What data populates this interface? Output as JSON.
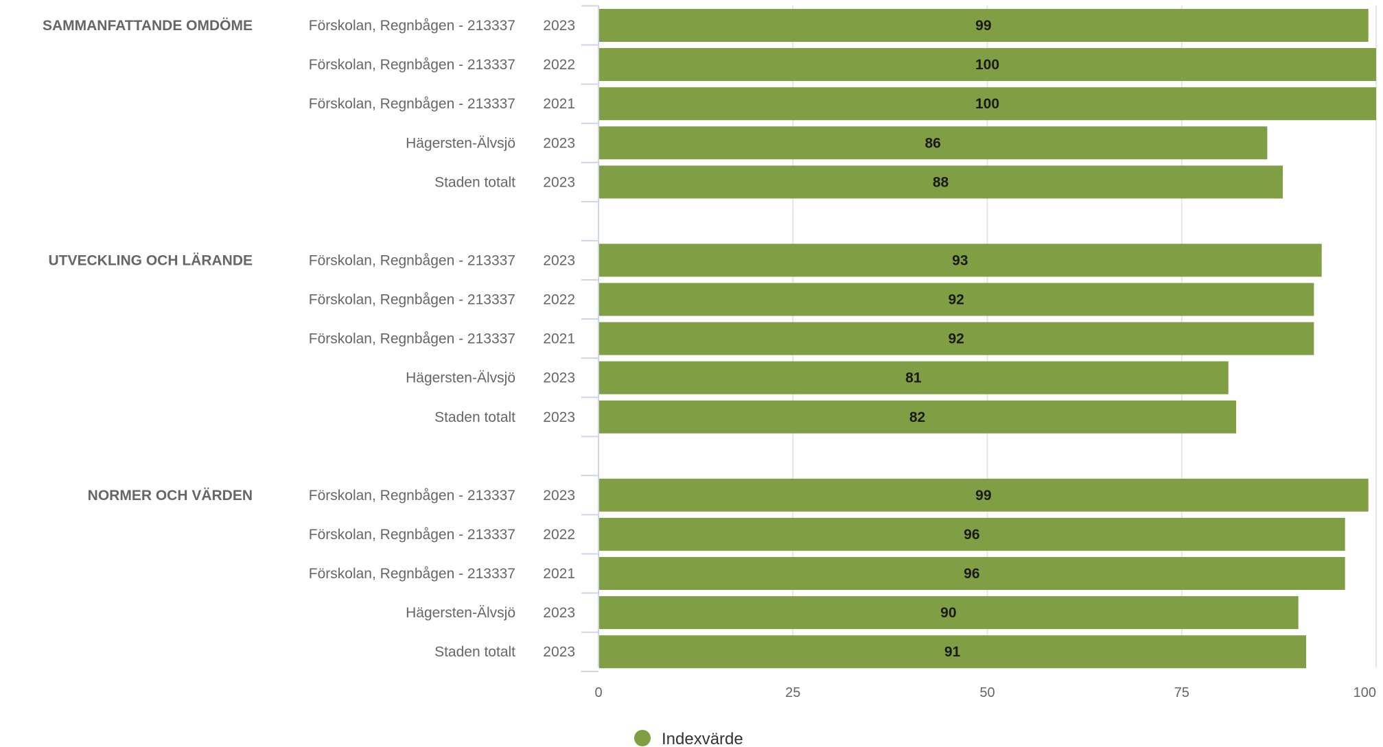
{
  "chart_data": {
    "type": "bar",
    "orientation": "horizontal",
    "grouped_categories": true,
    "xlim": [
      0,
      100
    ],
    "ticks": [
      "0",
      "25",
      "50",
      "75",
      "100"
    ],
    "grid": true,
    "legend_position": "bottom-center",
    "series": [
      {
        "name": "Indexvärde",
        "color": "#809e44"
      }
    ],
    "groups": [
      {
        "label": "SAMMANFATTANDE OMDÖME",
        "rows": [
          {
            "category": "Förskolan, Regnbågen - 213337",
            "year": "2023",
            "value": 99
          },
          {
            "category": "Förskolan, Regnbågen - 213337",
            "year": "2022",
            "value": 100
          },
          {
            "category": "Förskolan, Regnbågen - 213337",
            "year": "2021",
            "value": 100
          },
          {
            "category": "Hägersten-Älvsjö",
            "year": "2023",
            "value": 86
          },
          {
            "category": "Staden totalt",
            "year": "2023",
            "value": 88
          }
        ]
      },
      {
        "label": "UTVECKLING OCH LÄRANDE",
        "rows": [
          {
            "category": "Förskolan, Regnbågen - 213337",
            "year": "2023",
            "value": 93
          },
          {
            "category": "Förskolan, Regnbågen - 213337",
            "year": "2022",
            "value": 92
          },
          {
            "category": "Förskolan, Regnbågen - 213337",
            "year": "2021",
            "value": 92
          },
          {
            "category": "Hägersten-Älvsjö",
            "year": "2023",
            "value": 81
          },
          {
            "category": "Staden totalt",
            "year": "2023",
            "value": 82
          }
        ]
      },
      {
        "label": "NORMER OCH VÄRDEN",
        "rows": [
          {
            "category": "Förskolan, Regnbågen - 213337",
            "year": "2023",
            "value": 99
          },
          {
            "category": "Förskolan, Regnbågen - 213337",
            "year": "2022",
            "value": 96
          },
          {
            "category": "Förskolan, Regnbågen - 213337",
            "year": "2021",
            "value": 96
          },
          {
            "category": "Hägersten-Älvsjö",
            "year": "2023",
            "value": 90
          },
          {
            "category": "Staden totalt",
            "year": "2023",
            "value": 91
          }
        ]
      }
    ]
  }
}
